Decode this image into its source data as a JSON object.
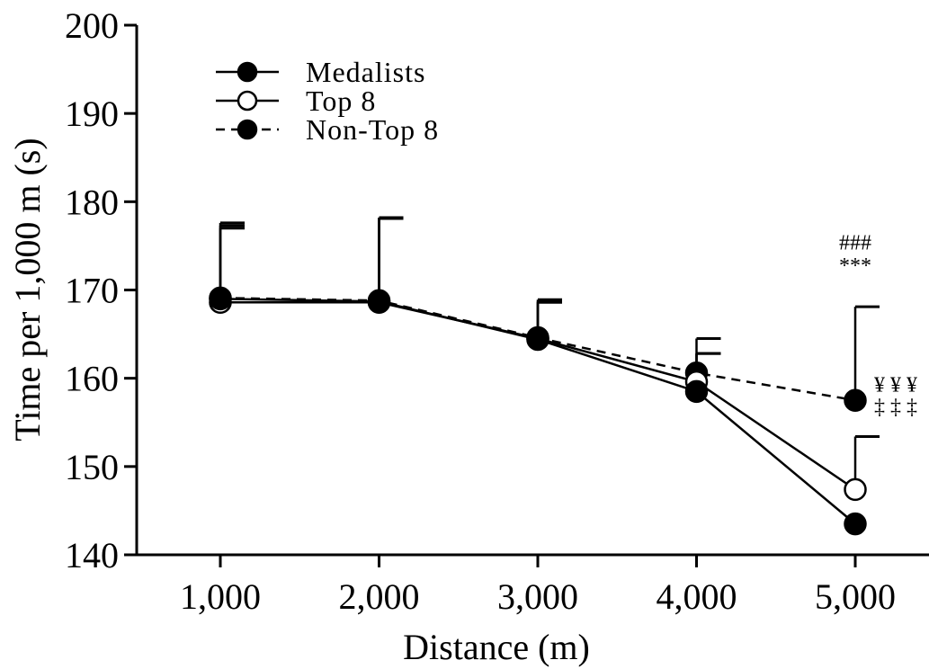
{
  "chart_data": {
    "type": "line",
    "title": "",
    "xlabel": "Distance (m)",
    "ylabel": "Time per 1,000 m (s)",
    "x": [
      1000,
      2000,
      3000,
      4000,
      5000
    ],
    "x_tick_labels": [
      "1,000",
      "2,000",
      "3,000",
      "4,000",
      "5,000"
    ],
    "xlim": [
      500,
      5500
    ],
    "ylim": [
      140,
      200
    ],
    "y_ticks": [
      140,
      150,
      160,
      170,
      180,
      190,
      200
    ],
    "grid": false,
    "legend_position": "top-left",
    "series": [
      {
        "name": "Medalists",
        "marker": "filled-circle",
        "line_style": "solid",
        "values": [
          169.0,
          168.7,
          164.4,
          158.5,
          143.5
        ],
        "error_upper": [
          177.0,
          178.2,
          168.6,
          162.8,
          null
        ]
      },
      {
        "name": "Top 8",
        "marker": "open-circle",
        "line_style": "solid",
        "values": [
          168.6,
          168.6,
          164.5,
          159.6,
          147.4
        ],
        "error_upper": [
          177.3,
          178.1,
          168.7,
          164.5,
          153.4
        ]
      },
      {
        "name": "Non-Top 8",
        "marker": "filled-circle",
        "line_style": "dashed",
        "values": [
          169.1,
          168.8,
          164.6,
          160.6,
          157.5
        ],
        "error_upper": [
          177.6,
          178.2,
          168.9,
          162.8,
          168.1
        ]
      }
    ],
    "annotations": [
      {
        "text": "###",
        "x": 5000,
        "y": 175.4
      },
      {
        "text": "***",
        "x": 5000,
        "y": 172.8
      },
      {
        "text": "¥ ¥ ¥",
        "x": 5200,
        "y": 159.3
      },
      {
        "text": "‡ ‡ ‡",
        "x": 5200,
        "y": 156.8
      }
    ],
    "colors": {
      "line": "#000000",
      "background": "#ffffff"
    }
  }
}
